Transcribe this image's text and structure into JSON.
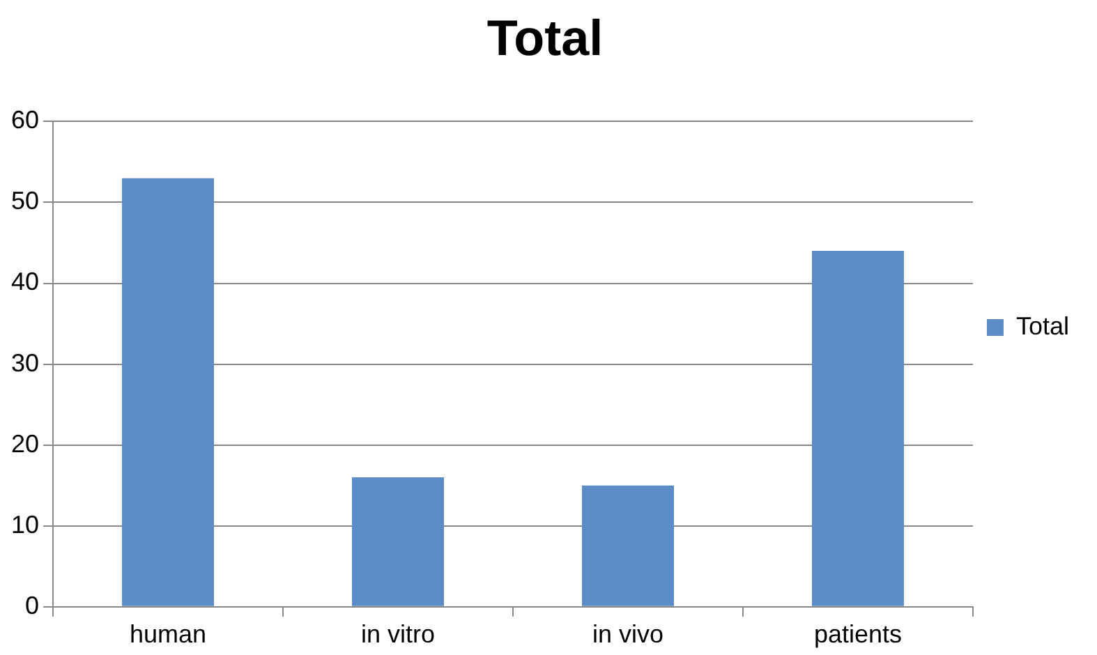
{
  "chart_data": {
    "type": "bar",
    "title": "Total",
    "categories": [
      "human",
      "in vitro",
      "in vivo",
      "patients"
    ],
    "series": [
      {
        "name": "Total",
        "color": "#5b8cc7",
        "values": [
          53,
          16,
          15,
          44
        ]
      }
    ],
    "ylim": [
      0,
      60
    ],
    "yticks": [
      0,
      10,
      20,
      30,
      40,
      50,
      60
    ],
    "grid": "y",
    "legend": "right"
  }
}
